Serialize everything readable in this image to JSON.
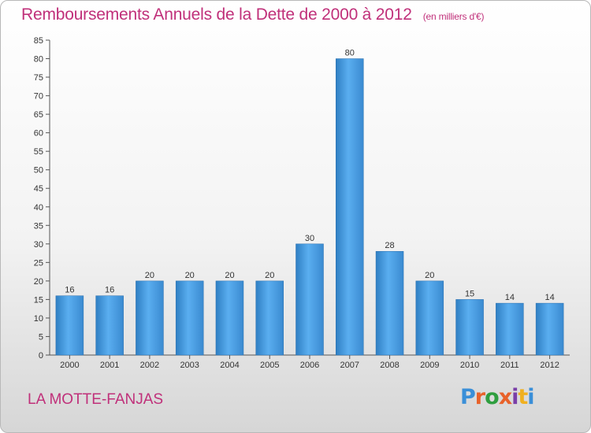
{
  "chart_data": {
    "type": "bar",
    "title": "Remboursements Annuels de la Dette de 2000 à 2012",
    "subtitle": "(en milliers d'€)",
    "categories": [
      "2000",
      "2001",
      "2002",
      "2003",
      "2004",
      "2005",
      "2006",
      "2007",
      "2008",
      "2009",
      "2010",
      "2011",
      "2012"
    ],
    "values": [
      16,
      16,
      20,
      20,
      20,
      20,
      30,
      80,
      28,
      20,
      15,
      14,
      14
    ],
    "ylim": [
      0,
      85
    ],
    "yticks": [
      0,
      5,
      10,
      15,
      20,
      25,
      30,
      35,
      40,
      45,
      50,
      55,
      60,
      65,
      70,
      75,
      80,
      85
    ],
    "grid": false,
    "data_labels": true,
    "bar_color": "#4a9fe0"
  },
  "footer": {
    "commune": "LA MOTTE-FANJAS",
    "logo_text": "Proxiti",
    "logo_colors": [
      "#3a8fd8",
      "#e8622a",
      "#2f9e3f",
      "#e8622a",
      "#7a3fa8",
      "#f0b020",
      "#3a8fd8"
    ]
  }
}
